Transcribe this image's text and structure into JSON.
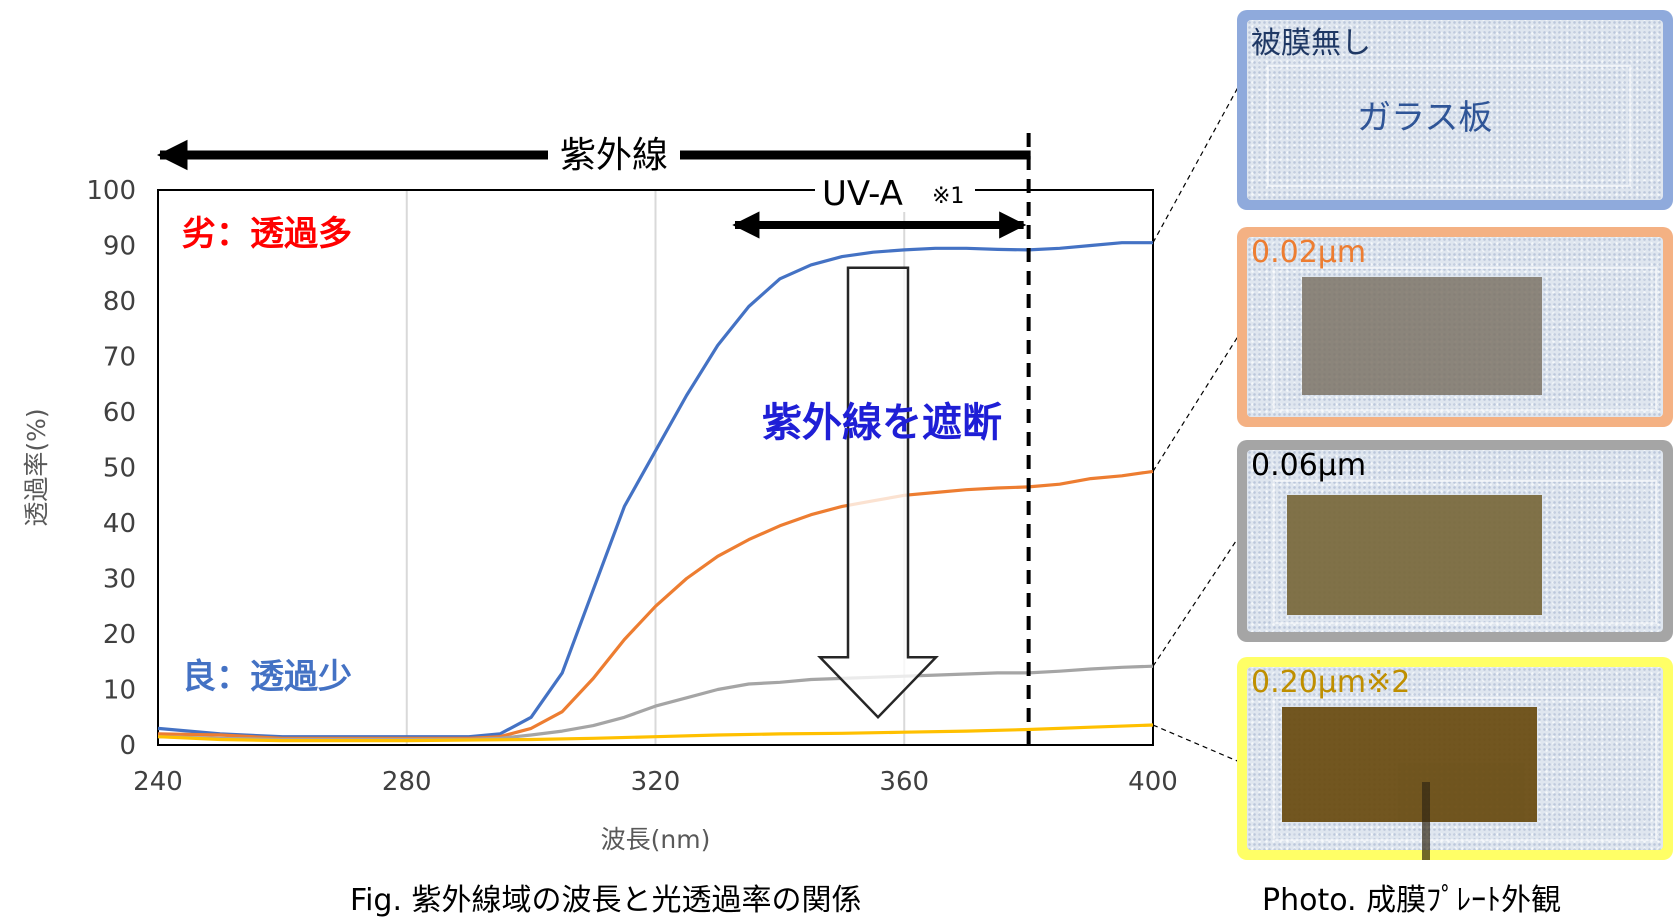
{
  "chart_data": {
    "type": "line",
    "xlabel": "波長(nm)",
    "ylabel": "透過率(%)",
    "xlim": [
      240,
      400
    ],
    "ylim": [
      0,
      100
    ],
    "xticks": [
      240,
      280,
      320,
      360,
      400
    ],
    "yticks": [
      0,
      10,
      20,
      30,
      40,
      50,
      60,
      70,
      80,
      90,
      100
    ],
    "grid": "vertical",
    "series": [
      {
        "color": "#4472c4",
        "points": [
          [
            240,
            3
          ],
          [
            245,
            2.5
          ],
          [
            250,
            2
          ],
          [
            260,
            1.5
          ],
          [
            270,
            1.5
          ],
          [
            280,
            1.5
          ],
          [
            290,
            1.5
          ],
          [
            295,
            2
          ],
          [
            300,
            5
          ],
          [
            305,
            13
          ],
          [
            310,
            28
          ],
          [
            315,
            43
          ],
          [
            320,
            53
          ],
          [
            325,
            63
          ],
          [
            330,
            72
          ],
          [
            335,
            79
          ],
          [
            340,
            84
          ],
          [
            345,
            86.5
          ],
          [
            350,
            88
          ],
          [
            355,
            88.8
          ],
          [
            360,
            89.2
          ],
          [
            365,
            89.5
          ],
          [
            370,
            89.5
          ],
          [
            375,
            89.3
          ],
          [
            380,
            89.2
          ],
          [
            385,
            89.5
          ],
          [
            390,
            90
          ],
          [
            395,
            90.5
          ],
          [
            400,
            90.5
          ]
        ]
      },
      {
        "color": "#ed7d31",
        "points": [
          [
            240,
            2
          ],
          [
            250,
            1.8
          ],
          [
            260,
            1.2
          ],
          [
            270,
            1.2
          ],
          [
            280,
            1.2
          ],
          [
            290,
            1.2
          ],
          [
            295,
            1.5
          ],
          [
            300,
            3
          ],
          [
            305,
            6
          ],
          [
            310,
            12
          ],
          [
            315,
            19
          ],
          [
            320,
            25
          ],
          [
            325,
            30
          ],
          [
            330,
            34
          ],
          [
            335,
            37
          ],
          [
            340,
            39.5
          ],
          [
            345,
            41.5
          ],
          [
            350,
            43
          ],
          [
            355,
            44
          ],
          [
            360,
            45
          ],
          [
            365,
            45.5
          ],
          [
            370,
            46
          ],
          [
            375,
            46.3
          ],
          [
            380,
            46.5
          ],
          [
            385,
            47
          ],
          [
            390,
            48
          ],
          [
            395,
            48.5
          ],
          [
            400,
            49.3
          ]
        ]
      },
      {
        "color": "#a5a5a5",
        "points": [
          [
            240,
            1.5
          ],
          [
            250,
            1.2
          ],
          [
            260,
            1
          ],
          [
            270,
            1
          ],
          [
            280,
            1
          ],
          [
            290,
            1
          ],
          [
            295,
            1.2
          ],
          [
            300,
            1.8
          ],
          [
            305,
            2.5
          ],
          [
            310,
            3.5
          ],
          [
            315,
            5
          ],
          [
            320,
            7
          ],
          [
            325,
            8.5
          ],
          [
            330,
            10
          ],
          [
            335,
            11
          ],
          [
            340,
            11.3
          ],
          [
            345,
            11.8
          ],
          [
            350,
            12
          ],
          [
            355,
            12.2
          ],
          [
            360,
            12.4
          ],
          [
            365,
            12.6
          ],
          [
            370,
            12.8
          ],
          [
            375,
            13
          ],
          [
            380,
            13
          ],
          [
            385,
            13.3
          ],
          [
            390,
            13.7
          ],
          [
            395,
            14
          ],
          [
            400,
            14.2
          ]
        ]
      },
      {
        "color": "#ffc000",
        "points": [
          [
            240,
            1.5
          ],
          [
            250,
            1
          ],
          [
            260,
            0.8
          ],
          [
            270,
            0.8
          ],
          [
            280,
            0.8
          ],
          [
            290,
            0.9
          ],
          [
            300,
            1
          ],
          [
            310,
            1.2
          ],
          [
            320,
            1.5
          ],
          [
            330,
            1.8
          ],
          [
            340,
            2
          ],
          [
            350,
            2.1
          ],
          [
            360,
            2.3
          ],
          [
            370,
            2.5
          ],
          [
            380,
            2.8
          ],
          [
            390,
            3.2
          ],
          [
            400,
            3.6
          ]
        ]
      }
    ],
    "annotations": {
      "uv_arrow_label": "紫外線",
      "uva_arrow_label": "UV-A",
      "uva_note": "※1",
      "uva_limit_x": 380,
      "poor_label": "劣：透過多",
      "good_label": "良：透過少",
      "block_label": "紫外線を遮断",
      "block_arrow_from_y": 86,
      "block_arrow_to_y": 5
    }
  },
  "colors": {
    "poor": "#ff0000",
    "good": "#4472c4",
    "block": "#1f1fd6"
  },
  "captions": {
    "fig": "Fig. 紫外線域の波長と光透過率の関係",
    "photo": "Photo. 成膜ﾌﾟﾚｰﾄ外観"
  },
  "photos": [
    {
      "label": "被膜無し",
      "sublabel": "ガラス板",
      "border_color": "#8faadc",
      "label_color": "#1f3864",
      "film_color": ""
    },
    {
      "label": "0.02μm",
      "sublabel": "",
      "border_color": "#f4b183",
      "label_color": "#ed7d31",
      "film_color": "#7d7366"
    },
    {
      "label": "0.06μm",
      "sublabel": "",
      "border_color": "#a5a5a5",
      "label_color": "#000000",
      "film_color": "#7a6a3e"
    },
    {
      "label": "0.20μm※2",
      "sublabel": "",
      "border_color": "#ffff66",
      "label_color": "#bf8f00",
      "film_color": "#6b4e14"
    }
  ]
}
